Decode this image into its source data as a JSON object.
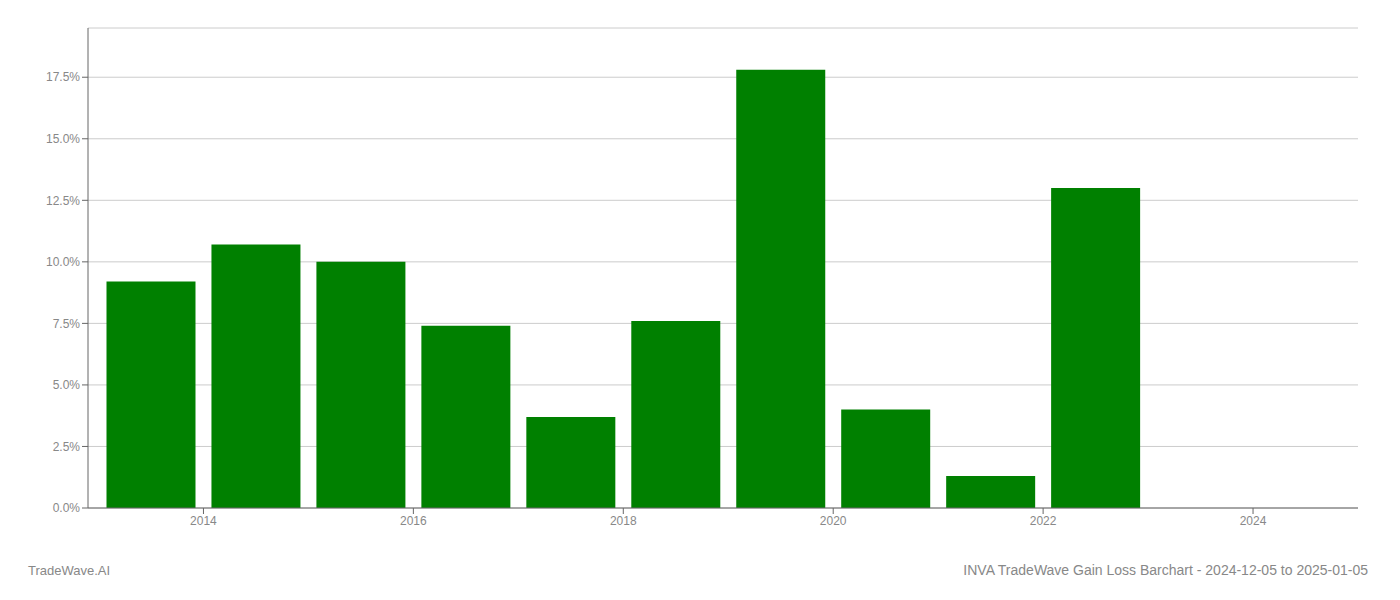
{
  "chart_data": {
    "type": "bar",
    "title": "INVA TradeWave Gain Loss Barchart - 2024-12-05 to 2025-01-05",
    "annotations": [
      "TradeWave.AI"
    ],
    "x": [
      2013,
      2014,
      2015,
      2016,
      2017,
      2018,
      2019,
      2020,
      2021,
      2022
    ],
    "values": [
      0.092,
      0.107,
      0.1,
      0.074,
      0.037,
      0.076,
      0.178,
      0.04,
      0.013,
      0.13
    ],
    "color": "#008000",
    "xlim": [
      2012.4,
      2024.5
    ],
    "xticks": [
      {
        "value": 2013.5,
        "label": "2014"
      },
      {
        "value": 2015.5,
        "label": "2016"
      },
      {
        "value": 2017.5,
        "label": "2018"
      },
      {
        "value": 2019.5,
        "label": "2020"
      },
      {
        "value": 2021.5,
        "label": "2022"
      },
      {
        "value": 2023.5,
        "label": "2024"
      }
    ],
    "ylim": [
      0,
      0.195
    ],
    "yticks": [
      {
        "value": 0.0,
        "label": "0.0%"
      },
      {
        "value": 0.025,
        "label": "2.5%"
      },
      {
        "value": 0.05,
        "label": "5.0%"
      },
      {
        "value": 0.075,
        "label": "7.5%"
      },
      {
        "value": 0.1,
        "label": "10.0%"
      },
      {
        "value": 0.125,
        "label": "12.5%"
      },
      {
        "value": 0.15,
        "label": "15.0%"
      },
      {
        "value": 0.175,
        "label": "17.5%"
      }
    ],
    "grid": true
  }
}
